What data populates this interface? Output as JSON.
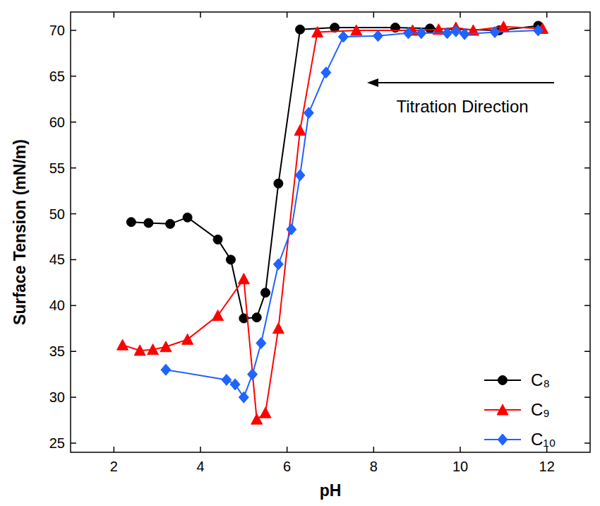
{
  "chart_data": {
    "type": "line",
    "x_label": "pH",
    "y_label": "Surface Tension (mN/m)",
    "xlim": [
      1,
      13
    ],
    "ylim": [
      24,
      72
    ],
    "xticks": [
      2,
      4,
      6,
      8,
      10,
      12
    ],
    "yticks": [
      25,
      30,
      35,
      40,
      45,
      50,
      55,
      60,
      65,
      70
    ],
    "grid": false,
    "legend": "lower right",
    "annotations": [
      {
        "text": "Titration Direction"
      }
    ],
    "series": [
      {
        "name": "C₈",
        "color": "#000000",
        "marker": "circle",
        "x": [
          2.4,
          2.8,
          3.3,
          3.7,
          4.4,
          4.7,
          5.0,
          5.3,
          5.5,
          5.8,
          6.3,
          7.1,
          8.5,
          9.3,
          10.9,
          11.8
        ],
        "values": [
          49.1,
          49.0,
          48.9,
          49.6,
          47.2,
          45.0,
          38.6,
          38.7,
          41.4,
          53.3,
          70.1,
          70.3,
          70.3,
          70.2,
          70.0,
          70.5
        ]
      },
      {
        "name": "C₉",
        "color": "#ff0000",
        "marker": "triangle",
        "x": [
          2.2,
          2.6,
          2.9,
          3.2,
          3.7,
          4.4,
          5.0,
          5.3,
          5.5,
          5.8,
          6.3,
          6.7,
          7.6,
          8.9,
          9.5,
          9.9,
          10.3,
          11.0,
          11.9
        ],
        "values": [
          35.7,
          35.1,
          35.2,
          35.5,
          36.3,
          38.9,
          42.9,
          27.6,
          28.3,
          37.5,
          59.1,
          69.8,
          70.0,
          70.0,
          70.1,
          70.3,
          70.0,
          70.4,
          70.2
        ]
      },
      {
        "name": "C₁₀",
        "color": "#1e64ff",
        "marker": "diamond",
        "x": [
          3.2,
          4.6,
          4.8,
          5.0,
          5.2,
          5.4,
          5.8,
          6.1,
          6.3,
          6.5,
          6.9,
          7.3,
          8.1,
          8.8,
          9.1,
          9.7,
          9.9,
          10.1,
          10.8,
          11.8
        ],
        "values": [
          33.0,
          31.9,
          31.4,
          30.0,
          32.5,
          35.9,
          44.5,
          48.3,
          54.2,
          61.0,
          65.4,
          69.3,
          69.4,
          69.7,
          69.7,
          69.7,
          69.9,
          69.6,
          69.8,
          70.0
        ]
      }
    ]
  }
}
